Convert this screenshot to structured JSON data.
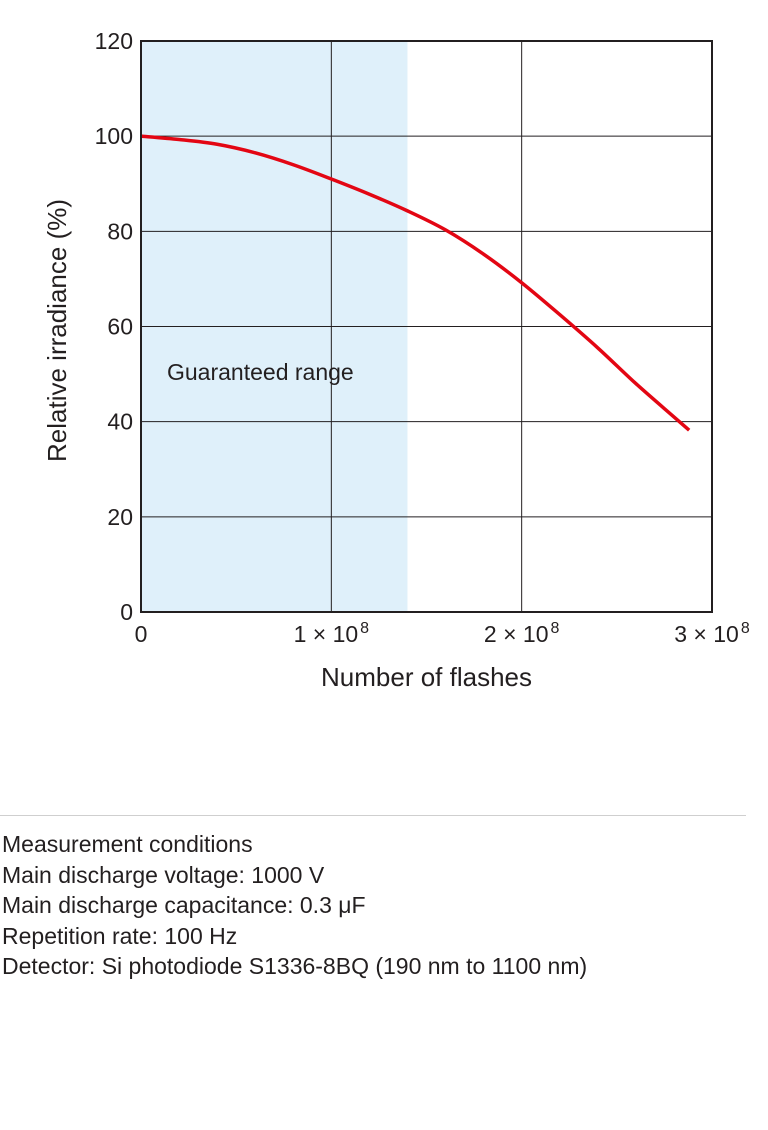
{
  "chart_data": {
    "type": "line",
    "title": "",
    "xlabel": "Number of flashes",
    "ylabel": "Relative irradiance (%)",
    "xlim": [
      0,
      300000000
    ],
    "ylim": [
      0,
      120
    ],
    "grid": true,
    "y_ticks": [
      0,
      20,
      40,
      60,
      80,
      100,
      120
    ],
    "y_tick_labels": [
      "0",
      "20",
      "40",
      "60",
      "80",
      "100",
      "120"
    ],
    "x_ticks": [
      0,
      100000000,
      200000000,
      300000000
    ],
    "x_tick_labels": [
      {
        "base": "0",
        "exp": ""
      },
      {
        "base": "1 × 10",
        "exp": "8"
      },
      {
        "base": "2 × 10",
        "exp": "8"
      },
      {
        "base": "3 × 10",
        "exp": "8"
      }
    ],
    "shaded_region": {
      "label": "Guaranteed range",
      "x_start": 0,
      "x_end": 140000000,
      "color": "#dff0fa"
    },
    "series": [
      {
        "name": "Relative irradiance",
        "color": "#e30613",
        "x": [
          0,
          20000000,
          40000000,
          60000000,
          80000000,
          100000000,
          120000000,
          140000000,
          160000000,
          180000000,
          200000000,
          220000000,
          240000000,
          260000000,
          280000000,
          288000000
        ],
        "y": [
          100,
          99.3,
          98.3,
          96.5,
          94,
          91,
          87.8,
          84.3,
          80.3,
          75.2,
          69.2,
          62.5,
          55.5,
          48,
          41,
          38.2
        ]
      }
    ]
  },
  "conditions": {
    "heading": "Measurement conditions",
    "voltage": "Main discharge voltage: 1000 V",
    "capacitance": "Main discharge capacitance: 0.3 μF",
    "repetition_rate": "Repetition rate: 100 Hz",
    "detector": "Detector: Si photodiode S1336-8BQ (190 nm to 1100 nm)"
  }
}
